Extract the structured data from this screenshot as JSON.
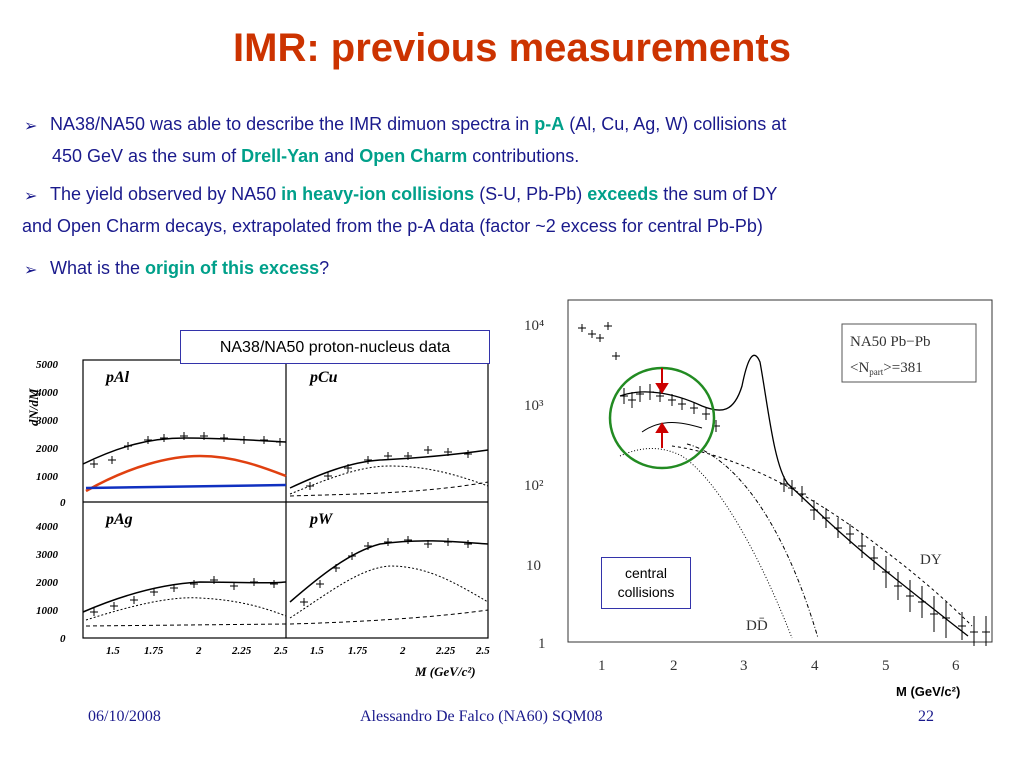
{
  "title": "IMR: previous measurements",
  "bullets": [
    {
      "line1_a": "NA38/NA50 was able to describe the IMR dimuon spectra in ",
      "line1_b": "p-A",
      "line1_c": " (Al, Cu, Ag, W) collisions at",
      "line2_a": "450 GeV as the sum of ",
      "line2_b": "Drell-Yan",
      "line2_c": " and ",
      "line2_d": "Open Charm",
      "line2_e": " contributions."
    },
    {
      "line1_a": "The yield observed by NA50 ",
      "line1_b": "in heavy-ion collisions",
      "line1_c": " (S-U, Pb-Pb) ",
      "line1_d": "exceeds",
      "line1_e": " the sum of DY",
      "line2": "and Open Charm decays, extrapolated from the p-A data (factor ~2 excess for central Pb-Pb)"
    },
    {
      "a": "What is the ",
      "b": "origin of this excess",
      "c": "?"
    }
  ],
  "bullet_symbol": "➢",
  "left_figure": {
    "caption": "NA38/NA50 proton-nucleus data",
    "ylabel": "dN/dM",
    "xlabel": "M (GeV/c²)",
    "panels": [
      "pAl",
      "pCu",
      "pAg",
      "pW"
    ],
    "y_ticks": [
      "5000",
      "4000",
      "3000",
      "2000",
      "1000",
      "0"
    ],
    "y_ticks_bottom": [
      "4000",
      "3000",
      "2000",
      "1000",
      "0"
    ],
    "x_ticks": [
      "1.5",
      "1.75",
      "2",
      "2.25",
      "2.5"
    ]
  },
  "right_figure": {
    "legend_line1": "NA50  Pb−Pb",
    "legend_line2": "<N",
    "legend_sub": "part",
    "legend_line2_end": ">=381",
    "y_ticks": [
      "10⁴",
      "10³",
      "10²",
      "10",
      "1"
    ],
    "x_ticks": [
      "1",
      "2",
      "3",
      "4",
      "5",
      "6"
    ],
    "label_dy": "DY",
    "label_dd": "DD̄",
    "xlabel": "M (GeV/c²)",
    "box_line1": "central",
    "box_line2": "collisions"
  },
  "footer": {
    "date": "06/10/2008",
    "author": "Alessandro De Falco (NA60) SQM08",
    "page": "22"
  },
  "colors": {
    "title": "#cc3300",
    "text": "#1a1a8c",
    "highlight": "#00a08a",
    "circle": "#228b22",
    "arrow": "#cc0000",
    "pal_curve_red": "#e04010",
    "pal_curve_blue": "#1030c0"
  }
}
